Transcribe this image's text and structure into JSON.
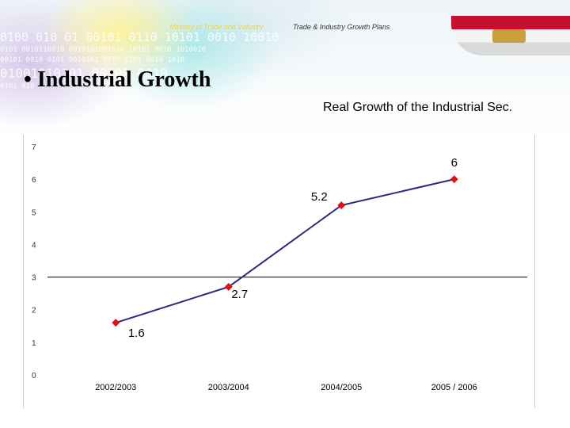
{
  "header": {
    "ministry": "Ministry of Trade and Industry",
    "plans": "Trade & Industry Growth Plans",
    "binary_lines": [
      "0100 010 01 00101 0110 10101 0010 10010",
      "0101 0010110010 0010101001010 10101 0010 1010010",
      "00101 0010 0101 0010101 0010 0101 0010 1010",
      "01001010101 00101 0010",
      "0101 010"
    ]
  },
  "slide": {
    "bullet": "•",
    "title": "Industrial Growth"
  },
  "colors": {
    "line": "#2b2b80",
    "marker": "#e01010",
    "gridline": "#000000"
  },
  "chart_data": {
    "type": "line",
    "title": "Real Growth of the Industrial Sec.",
    "xlabel": "",
    "ylabel": "",
    "categories": [
      "2002/2003",
      "2003/2004",
      "2004/2005",
      "2005 / 2006"
    ],
    "series": [
      {
        "values": [
          1.6,
          2.7,
          5.2,
          6
        ]
      }
    ],
    "data_labels": [
      "1.6",
      "2.7",
      "5.2",
      "6"
    ],
    "y_ticks": [
      0,
      1,
      2,
      3,
      4,
      5,
      6,
      7
    ],
    "ylim": [
      0,
      7
    ],
    "reference_line": 3,
    "grid": false,
    "legend": "none"
  }
}
